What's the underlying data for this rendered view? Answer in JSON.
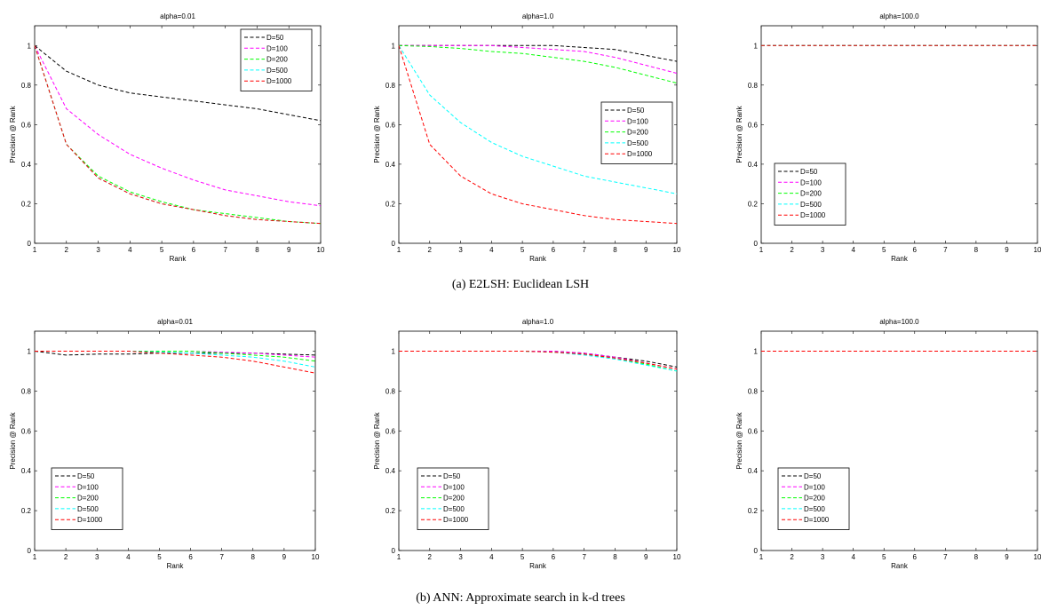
{
  "captions": {
    "a": "(a) E2LSH: Euclidean LSH",
    "b": "(b) ANN: Approximate search in k-d trees"
  },
  "colors": {
    "D=50": "#000000",
    "D=100": "#ff00ff",
    "D=200": "#00ff00",
    "D=500": "#00ffff",
    "D=1000": "#ff0000"
  },
  "chart_data": [
    {
      "type": "line",
      "title": "alpha=0.01",
      "xlabel": "Rank",
      "ylabel": "Precision @ Rank",
      "xlim": [
        1,
        10
      ],
      "ylim": [
        0,
        1.1
      ],
      "legend": "top-right",
      "grid": false,
      "x": [
        1,
        2,
        3,
        4,
        5,
        6,
        7,
        8,
        9,
        10
      ],
      "xticks": [
        "1",
        "2",
        "3",
        "4",
        "5",
        "6",
        "7",
        "8",
        "9",
        "10"
      ],
      "yticks": [
        "0",
        "0.2",
        "0.4",
        "0.6",
        "0.8",
        "1"
      ],
      "series": [
        {
          "name": "D=50",
          "values": [
            1.0,
            0.87,
            0.8,
            0.76,
            0.74,
            0.72,
            0.7,
            0.68,
            0.65,
            0.62
          ]
        },
        {
          "name": "D=100",
          "values": [
            1.0,
            0.68,
            0.55,
            0.45,
            0.38,
            0.32,
            0.27,
            0.24,
            0.21,
            0.19
          ]
        },
        {
          "name": "D=200",
          "values": [
            1.0,
            0.5,
            0.34,
            0.26,
            0.21,
            0.17,
            0.15,
            0.13,
            0.11,
            0.1
          ]
        },
        {
          "name": "D=500",
          "values": [
            1.0,
            0.5,
            0.33,
            0.25,
            0.2,
            0.17,
            0.14,
            0.12,
            0.11,
            0.1
          ]
        },
        {
          "name": "D=1000",
          "values": [
            1.0,
            0.5,
            0.33,
            0.25,
            0.2,
            0.17,
            0.14,
            0.12,
            0.11,
            0.1
          ]
        }
      ]
    },
    {
      "type": "line",
      "title": "alpha=1.0",
      "xlabel": "Rank",
      "ylabel": "Precision @ Rank",
      "xlim": [
        1,
        10
      ],
      "ylim": [
        0,
        1.1
      ],
      "legend": "middle-right",
      "grid": false,
      "x": [
        1,
        2,
        3,
        4,
        5,
        6,
        7,
        8,
        9,
        10
      ],
      "xticks": [
        "1",
        "2",
        "3",
        "4",
        "5",
        "6",
        "7",
        "8",
        "9",
        "10"
      ],
      "yticks": [
        "0",
        "0.2",
        "0.4",
        "0.6",
        "0.8",
        "1"
      ],
      "series": [
        {
          "name": "D=50",
          "values": [
            1.0,
            1.0,
            1.0,
            1.0,
            1.0,
            1.0,
            0.99,
            0.98,
            0.95,
            0.92
          ]
        },
        {
          "name": "D=100",
          "values": [
            1.0,
            1.0,
            1.0,
            1.0,
            0.99,
            0.98,
            0.97,
            0.94,
            0.9,
            0.86
          ]
        },
        {
          "name": "D=200",
          "values": [
            1.0,
            0.995,
            0.985,
            0.97,
            0.96,
            0.94,
            0.92,
            0.89,
            0.85,
            0.81
          ]
        },
        {
          "name": "D=500",
          "values": [
            1.0,
            0.75,
            0.61,
            0.51,
            0.44,
            0.39,
            0.34,
            0.31,
            0.28,
            0.25
          ]
        },
        {
          "name": "D=1000",
          "values": [
            1.0,
            0.5,
            0.34,
            0.25,
            0.2,
            0.17,
            0.14,
            0.12,
            0.11,
            0.1
          ]
        }
      ]
    },
    {
      "type": "line",
      "title": "alpha=100.0",
      "xlabel": "Rank",
      "ylabel": "Precision @ Rank",
      "xlim": [
        1,
        10
      ],
      "ylim": [
        0,
        1.1
      ],
      "legend": "bottom-left",
      "grid": false,
      "x": [
        1,
        2,
        3,
        4,
        5,
        6,
        7,
        8,
        9,
        10
      ],
      "xticks": [
        "1",
        "2",
        "3",
        "4",
        "5",
        "6",
        "7",
        "8",
        "9",
        "10"
      ],
      "yticks": [
        "0",
        "0.2",
        "0.4",
        "0.6",
        "0.8",
        "1"
      ],
      "series": [
        {
          "name": "D=50",
          "values": [
            1,
            1,
            1,
            1,
            1,
            1,
            1,
            1,
            1,
            1
          ]
        },
        {
          "name": "D=100",
          "values": [
            1,
            1,
            1,
            1,
            1,
            1,
            1,
            1,
            1,
            1
          ]
        },
        {
          "name": "D=200",
          "values": [
            1,
            1,
            1,
            1,
            1,
            1,
            1,
            1,
            1,
            1
          ]
        },
        {
          "name": "D=500",
          "values": [
            1,
            1,
            1,
            1,
            1,
            1,
            1,
            1,
            1,
            1
          ]
        },
        {
          "name": "D=1000",
          "values": [
            1,
            1,
            1,
            1,
            1,
            1,
            1,
            1,
            1,
            1
          ]
        }
      ]
    },
    {
      "type": "line",
      "title": "alpha=0.01",
      "xlabel": "Rank",
      "ylabel": "Precision @ Rank",
      "xlim": [
        1,
        10
      ],
      "ylim": [
        0,
        1.1
      ],
      "legend": "bottom-left",
      "grid": false,
      "x": [
        1,
        2,
        3,
        4,
        5,
        6,
        7,
        8,
        9,
        10
      ],
      "xticks": [
        "1",
        "2",
        "3",
        "4",
        "5",
        "6",
        "7",
        "8",
        "9",
        "10"
      ],
      "yticks": [
        "0",
        "0.2",
        "0.4",
        "0.6",
        "0.8",
        "1"
      ],
      "series": [
        {
          "name": "D=50",
          "values": [
            1.0,
            0.98,
            0.985,
            0.985,
            0.99,
            0.99,
            0.99,
            0.99,
            0.985,
            0.98
          ]
        },
        {
          "name": "D=100",
          "values": [
            1.0,
            1.0,
            1.0,
            1.0,
            1.0,
            1.0,
            0.995,
            0.99,
            0.98,
            0.97
          ]
        },
        {
          "name": "D=200",
          "values": [
            1.0,
            1.0,
            1.0,
            1.0,
            1.0,
            1.0,
            0.99,
            0.98,
            0.97,
            0.95
          ]
        },
        {
          "name": "D=500",
          "values": [
            1.0,
            1.0,
            1.0,
            1.0,
            0.995,
            0.99,
            0.98,
            0.97,
            0.95,
            0.92
          ]
        },
        {
          "name": "D=1000",
          "values": [
            1.0,
            1.0,
            1.0,
            1.0,
            0.99,
            0.98,
            0.97,
            0.95,
            0.92,
            0.89
          ]
        }
      ]
    },
    {
      "type": "line",
      "title": "alpha=1.0",
      "xlabel": "Rank",
      "ylabel": "Precision @ Rank",
      "xlim": [
        1,
        10
      ],
      "ylim": [
        0,
        1.1
      ],
      "legend": "bottom-left",
      "grid": false,
      "x": [
        1,
        2,
        3,
        4,
        5,
        6,
        7,
        8,
        9,
        10
      ],
      "xticks": [
        "1",
        "2",
        "3",
        "4",
        "5",
        "6",
        "7",
        "8",
        "9",
        "10"
      ],
      "yticks": [
        "0",
        "0.2",
        "0.4",
        "0.6",
        "0.8",
        "1"
      ],
      "series": [
        {
          "name": "D=50",
          "values": [
            1.0,
            1.0,
            1.0,
            1.0,
            1.0,
            1.0,
            0.99,
            0.97,
            0.95,
            0.92
          ]
        },
        {
          "name": "D=100",
          "values": [
            1.0,
            1.0,
            1.0,
            1.0,
            1.0,
            1.0,
            0.99,
            0.97,
            0.94,
            0.91
          ]
        },
        {
          "name": "D=200",
          "values": [
            1.0,
            1.0,
            1.0,
            1.0,
            1.0,
            0.995,
            0.985,
            0.965,
            0.935,
            0.9
          ]
        },
        {
          "name": "D=500",
          "values": [
            1.0,
            1.0,
            1.0,
            1.0,
            1.0,
            0.995,
            0.98,
            0.96,
            0.93,
            0.9
          ]
        },
        {
          "name": "D=1000",
          "values": [
            1.0,
            1.0,
            1.0,
            1.0,
            1.0,
            0.995,
            0.985,
            0.965,
            0.94,
            0.91
          ]
        }
      ]
    },
    {
      "type": "line",
      "title": "alpha=100.0",
      "xlabel": "Rank",
      "ylabel": "Precision @ Rank",
      "xlim": [
        1,
        10
      ],
      "ylim": [
        0,
        1.1
      ],
      "legend": "bottom-left",
      "grid": false,
      "x": [
        1,
        2,
        3,
        4,
        5,
        6,
        7,
        8,
        9,
        10
      ],
      "xticks": [
        "1",
        "2",
        "3",
        "4",
        "5",
        "6",
        "7",
        "8",
        "9",
        "10"
      ],
      "yticks": [
        "0",
        "0.2",
        "0.4",
        "0.6",
        "0.8",
        "1"
      ],
      "series": [
        {
          "name": "D=50",
          "values": [
            1,
            1,
            1,
            1,
            1,
            1,
            1,
            1,
            1,
            1
          ]
        },
        {
          "name": "D=100",
          "values": [
            1,
            1,
            1,
            1,
            1,
            1,
            1,
            1,
            1,
            1
          ]
        },
        {
          "name": "D=200",
          "values": [
            1,
            1,
            1,
            1,
            1,
            1,
            1,
            1,
            1,
            1
          ]
        },
        {
          "name": "D=500",
          "values": [
            1,
            1,
            1,
            1,
            1,
            1,
            1,
            1,
            1,
            1
          ]
        },
        {
          "name": "D=1000",
          "values": [
            1,
            1,
            1,
            1,
            1,
            1,
            1,
            1,
            1,
            1
          ]
        }
      ]
    }
  ]
}
